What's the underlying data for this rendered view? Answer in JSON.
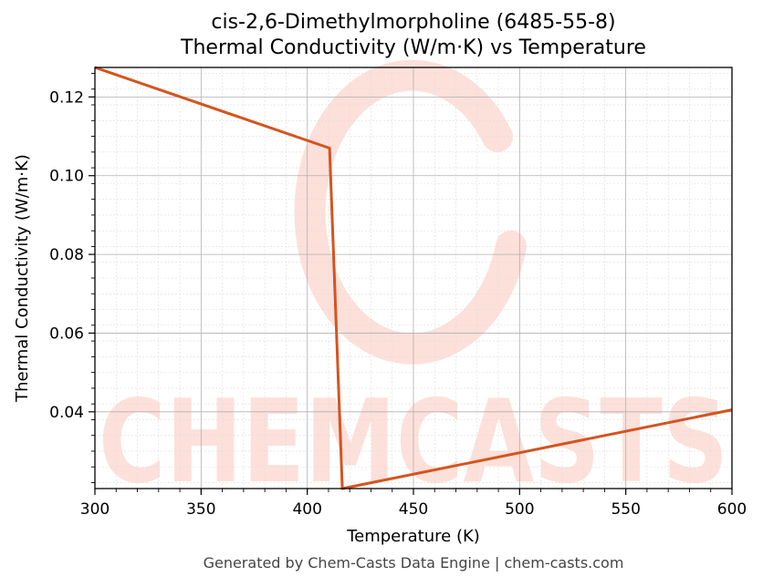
{
  "chart_data": {
    "type": "line",
    "title": "cis-2,6-Dimethylmorpholine (6485-55-8)",
    "subtitle": "Thermal Conductivity (W/m·K) vs Temperature",
    "xlabel": "Temperature (K)",
    "ylabel": "Thermal Conductivity (W/m·K)",
    "xlim": [
      300,
      600
    ],
    "ylim": [
      0.0205,
      0.1275
    ],
    "xticks": [
      300,
      350,
      400,
      450,
      500,
      550,
      600
    ],
    "yticks": [
      0.04,
      0.06,
      0.08,
      0.1,
      0.12
    ],
    "xtick_labels": [
      "300",
      "350",
      "400",
      "450",
      "500",
      "550",
      "600"
    ],
    "ytick_labels": [
      "0.04",
      "0.06",
      "0.08",
      "0.10",
      "0.12"
    ],
    "grid": true,
    "series": [
      {
        "color": "#d4541f",
        "x": [
          300,
          410.5,
          416.5,
          600
        ],
        "y": [
          0.1275,
          0.107,
          0.0205,
          0.0405
        ]
      }
    ]
  },
  "watermark": {
    "text": "CHEMCASTS",
    "color": "#fde0da"
  },
  "footer": "Generated by Chem-Casts Data Engine | chem-casts.com"
}
